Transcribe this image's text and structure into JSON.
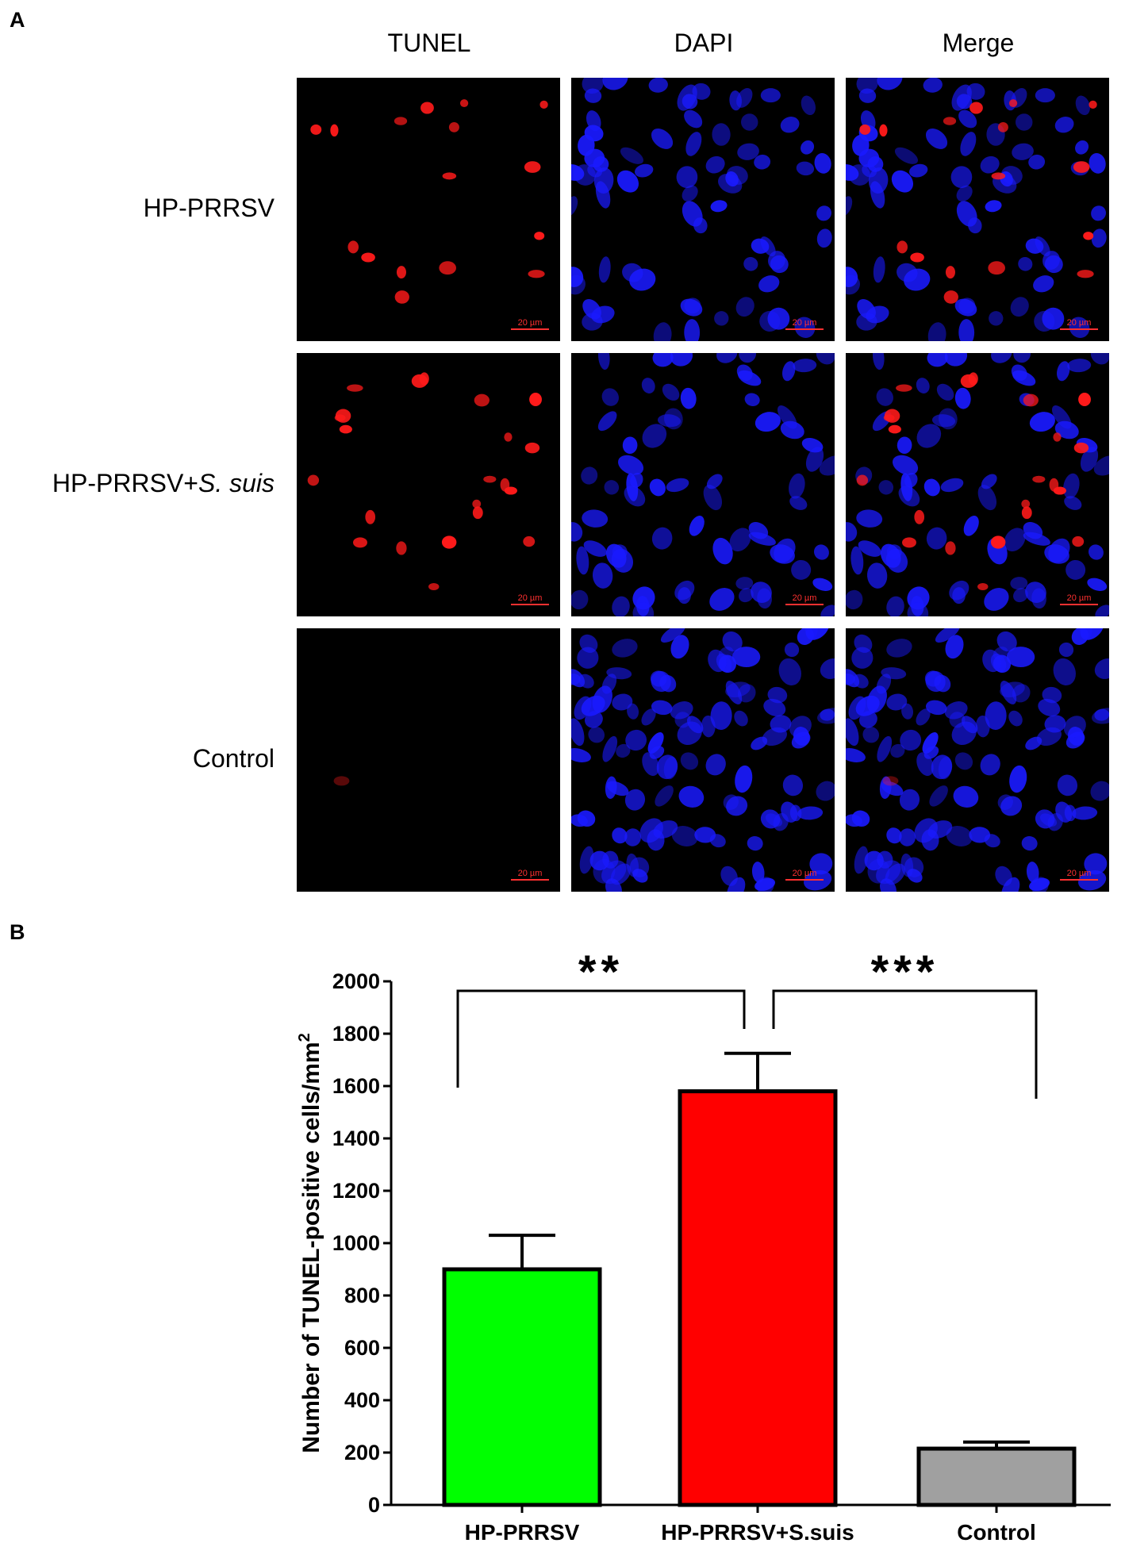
{
  "panel_a": {
    "letter": "A",
    "columns": [
      "TUNEL",
      "DAPI",
      "Merge"
    ],
    "rows": [
      {
        "label_main": "HP-PRRSV",
        "label_italic": ""
      },
      {
        "label_main": "HP-PRRSV+",
        "label_italic": "S. suis"
      },
      {
        "label_main": "Control",
        "label_italic": ""
      }
    ],
    "scale_bar": "20 µm",
    "colors": {
      "tunel": "#ff1a1a",
      "dapi": "#1a1aff",
      "background": "#000000"
    }
  },
  "panel_b": {
    "letter": "B"
  },
  "chart_data": {
    "type": "bar",
    "categories": [
      "HP-PRRSV",
      "HP-PRRSV+S.suis",
      "Control"
    ],
    "values": [
      900,
      1580,
      215
    ],
    "errors": [
      130,
      145,
      25
    ],
    "colors": [
      "#00ff00",
      "#ff0000",
      "#a0a0a0"
    ],
    "ylabel": "Number of TUNEL-positive cells/mm",
    "ylabel_superscript": "2",
    "ylim": [
      0,
      2000
    ],
    "yticks": [
      0,
      200,
      400,
      600,
      800,
      1000,
      1200,
      1400,
      1600,
      1800,
      2000
    ],
    "significance": [
      {
        "pair": [
          0,
          1
        ],
        "label": "**"
      },
      {
        "pair": [
          1,
          2
        ],
        "label": "***"
      }
    ]
  }
}
